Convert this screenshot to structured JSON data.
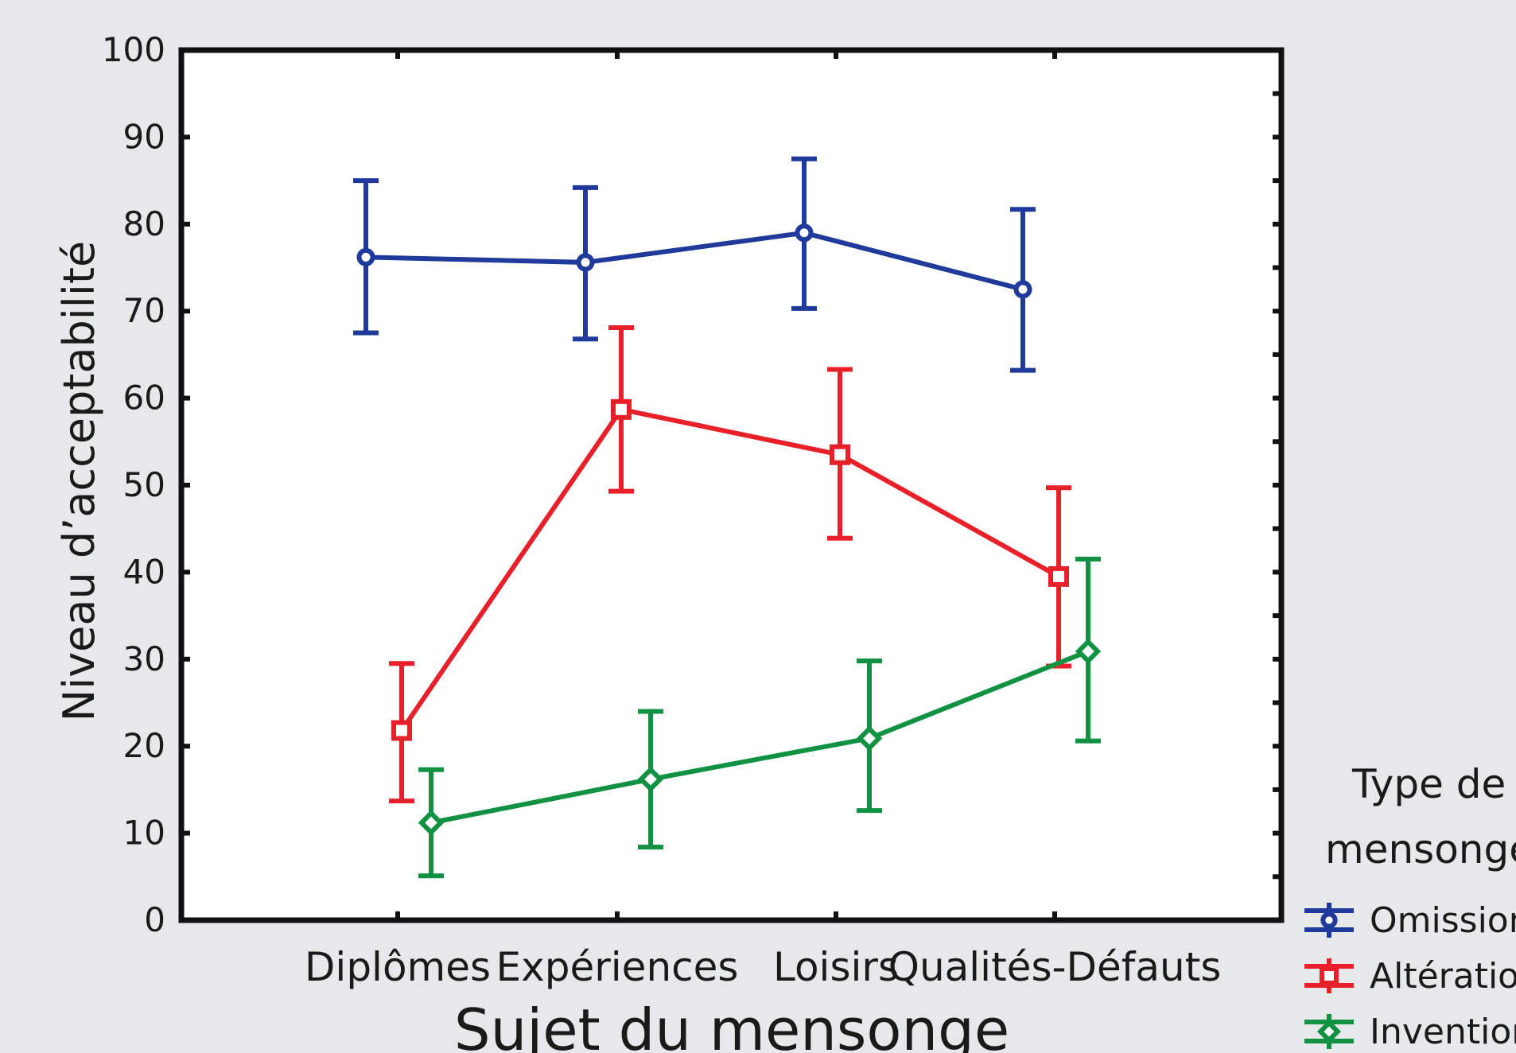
{
  "chart_data": {
    "type": "line",
    "title": "",
    "xlabel": "Sujet du mensonge",
    "ylabel": "Niveau d’acceptabilité",
    "categories": [
      "Diplômes",
      "Expériences",
      "Loisirs",
      "Qualités-Défauts"
    ],
    "ylim": [
      0,
      100
    ],
    "yticks": [
      0,
      10,
      20,
      30,
      40,
      50,
      60,
      70,
      80,
      90,
      100
    ],
    "grid": false,
    "error_bars": true,
    "legend": {
      "title": "Type de mensonge",
      "placement": "right, outside plot (clipped by image edge)",
      "entries": [
        "Omission",
        "Altération",
        "Invention"
      ]
    },
    "series": [
      {
        "name": "Omission",
        "color": "#1f3a9b",
        "marker": "circle",
        "values": [
          76.2,
          75.6,
          79.0,
          72.5
        ],
        "error_low": [
          67.5,
          66.8,
          70.3,
          63.2
        ],
        "error_high": [
          85.0,
          84.2,
          87.5,
          81.7
        ]
      },
      {
        "name": "Altération",
        "color": "#e8202a",
        "marker": "square",
        "values": [
          21.8,
          58.7,
          53.5,
          39.5
        ],
        "error_low": [
          13.7,
          49.3,
          43.9,
          29.2
        ],
        "error_high": [
          29.5,
          68.1,
          63.3,
          49.7
        ]
      },
      {
        "name": "Invention",
        "color": "#119142",
        "marker": "diamond",
        "values": [
          11.2,
          16.2,
          20.9,
          30.9
        ],
        "error_low": [
          5.1,
          8.4,
          12.6,
          20.6
        ],
        "error_high": [
          17.3,
          24.0,
          29.8,
          41.5
        ]
      }
    ]
  }
}
